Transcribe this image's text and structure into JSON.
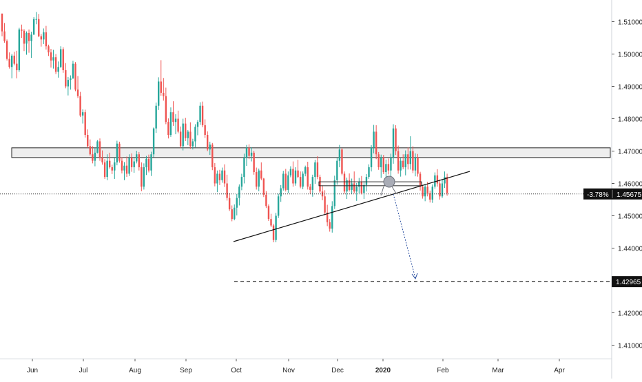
{
  "chart_data": {
    "type": "candlestick",
    "instrument_timeframe": "daily",
    "y_axis": {
      "ticks": [
        "1.51000",
        "1.50000",
        "1.49000",
        "1.48000",
        "1.47000",
        "1.46000",
        "1.45000",
        "1.44000",
        "1.43000",
        "1.42000",
        "1.41000"
      ],
      "tick_values": [
        1.51,
        1.5,
        1.49,
        1.48,
        1.47,
        1.46,
        1.45,
        1.44,
        1.43,
        1.42,
        1.41
      ],
      "range": [
        1.404,
        1.517
      ]
    },
    "x_axis": {
      "labels": [
        "Jun",
        "Jul",
        "Aug",
        "Sep",
        "Oct",
        "Nov",
        "Dec",
        "2020",
        "Feb",
        "Mar",
        "Apr"
      ],
      "bold_label": "2020"
    },
    "price_badge": {
      "change": "-3.78%",
      "price": "1.45675",
      "value": 1.45675
    },
    "target_badge": {
      "price": "1.42965",
      "value": 1.42965
    },
    "colors": {
      "up": "#26a69a",
      "down": "#ef5350",
      "arrow": "#2a4fa0",
      "zone_fill": "#eeeeee"
    },
    "resistance_zone": {
      "low": 1.468,
      "high": 1.471
    },
    "small_zone": {
      "low": 1.4595,
      "high": 1.4605
    },
    "candles": [
      [
        1.5125,
        1.5125,
        1.5055,
        1.507
      ],
      [
        1.507,
        1.5096,
        1.5035,
        1.504
      ],
      [
        1.504,
        1.5045,
        1.498,
        1.4985
      ],
      [
        1.4985,
        1.5005,
        1.4955,
        1.496
      ],
      [
        1.496,
        1.5,
        1.4925,
        1.4995
      ],
      [
        1.4995,
        1.5007,
        1.4965,
        1.497
      ],
      [
        1.497,
        1.501,
        1.4925,
        1.495
      ],
      [
        1.495,
        1.5081,
        1.4945,
        1.5076
      ],
      [
        1.5076,
        1.5091,
        1.505,
        1.5072
      ],
      [
        1.5072,
        1.5077,
        1.5009,
        1.5032
      ],
      [
        1.5032,
        1.507,
        1.4998,
        1.5065
      ],
      [
        1.5065,
        1.5076,
        1.5004,
        1.504
      ],
      [
        1.504,
        1.5069,
        1.4988,
        1.506
      ],
      [
        1.506,
        1.5114,
        1.5059,
        1.5108
      ],
      [
        1.5108,
        1.513,
        1.5092,
        1.5108
      ],
      [
        1.5108,
        1.5124,
        1.5052,
        1.5055
      ],
      [
        1.5055,
        1.5062,
        1.5023,
        1.5045
      ],
      [
        1.5045,
        1.5079,
        1.5031,
        1.5067
      ],
      [
        1.5067,
        1.5087,
        1.5014,
        1.5024
      ],
      [
        1.5024,
        1.5029,
        1.4994,
        1.5005
      ],
      [
        1.5005,
        1.5016,
        1.4958,
        1.498
      ],
      [
        1.498,
        1.5013,
        1.4955,
        1.499
      ],
      [
        1.499,
        1.5,
        1.4938,
        1.4945
      ],
      [
        1.4945,
        1.4977,
        1.4927,
        1.496
      ],
      [
        1.496,
        1.5024,
        1.4957,
        1.5015
      ],
      [
        1.5015,
        1.5021,
        1.4942,
        1.495
      ],
      [
        1.495,
        1.4972,
        1.4894,
        1.49
      ],
      [
        1.49,
        1.4929,
        1.4872,
        1.492
      ],
      [
        1.492,
        1.4934,
        1.489,
        1.4925
      ],
      [
        1.4925,
        1.4979,
        1.4923,
        1.497
      ],
      [
        1.497,
        1.4975,
        1.4885,
        1.489
      ],
      [
        1.489,
        1.4932,
        1.4864,
        1.487
      ],
      [
        1.487,
        1.4883,
        1.4805,
        1.481
      ],
      [
        1.481,
        1.4829,
        1.4785,
        1.482
      ],
      [
        1.482,
        1.4828,
        1.4742,
        1.475
      ],
      [
        1.475,
        1.4767,
        1.471,
        1.4715
      ],
      [
        1.4715,
        1.4736,
        1.4686,
        1.469
      ],
      [
        1.469,
        1.4715,
        1.4662,
        1.467
      ],
      [
        1.467,
        1.471,
        1.4653,
        1.4695
      ],
      [
        1.4695,
        1.4734,
        1.4693,
        1.473
      ],
      [
        1.473,
        1.4739,
        1.467,
        1.468
      ],
      [
        1.468,
        1.4702,
        1.4658,
        1.4665
      ],
      [
        1.4665,
        1.4675,
        1.4614,
        1.462
      ],
      [
        1.462,
        1.469,
        1.461,
        1.467
      ],
      [
        1.467,
        1.4695,
        1.4646,
        1.465
      ],
      [
        1.465,
        1.4658,
        1.4629,
        1.464
      ],
      [
        1.464,
        1.468,
        1.4614,
        1.4665
      ],
      [
        1.4665,
        1.4732,
        1.4656,
        1.4723
      ],
      [
        1.4723,
        1.4729,
        1.4664,
        1.467
      ],
      [
        1.467,
        1.4681,
        1.4631,
        1.464
      ],
      [
        1.464,
        1.4666,
        1.461,
        1.4655
      ],
      [
        1.4655,
        1.4683,
        1.462,
        1.463
      ],
      [
        1.463,
        1.469,
        1.4623,
        1.4679
      ],
      [
        1.4679,
        1.4693,
        1.4636,
        1.465
      ],
      [
        1.465,
        1.4678,
        1.4633,
        1.4668
      ],
      [
        1.4668,
        1.4701,
        1.4662,
        1.469
      ],
      [
        1.469,
        1.4697,
        1.464,
        1.465
      ],
      [
        1.465,
        1.4665,
        1.4576,
        1.459
      ],
      [
        1.459,
        1.4662,
        1.4581,
        1.465
      ],
      [
        1.465,
        1.4685,
        1.4626,
        1.4676
      ],
      [
        1.4676,
        1.4689,
        1.4634,
        1.464
      ],
      [
        1.464,
        1.4698,
        1.4623,
        1.469
      ],
      [
        1.469,
        1.4773,
        1.4681,
        1.477
      ],
      [
        1.477,
        1.485,
        1.4756,
        1.484
      ],
      [
        1.484,
        1.4928,
        1.4827,
        1.4915
      ],
      [
        1.4915,
        1.4981,
        1.4871,
        1.488
      ],
      [
        1.488,
        1.4926,
        1.4856,
        1.487
      ],
      [
        1.487,
        1.4896,
        1.4783,
        1.479
      ],
      [
        1.479,
        1.4801,
        1.4739,
        1.475
      ],
      [
        1.475,
        1.4835,
        1.4744,
        1.482
      ],
      [
        1.482,
        1.4854,
        1.4778,
        1.479
      ],
      [
        1.479,
        1.4814,
        1.4752,
        1.48
      ],
      [
        1.48,
        1.4825,
        1.4755,
        1.476
      ],
      [
        1.476,
        1.4776,
        1.4709,
        1.4715
      ],
      [
        1.4715,
        1.48,
        1.4702,
        1.4785
      ],
      [
        1.4785,
        1.4803,
        1.4731,
        1.474
      ],
      [
        1.474,
        1.4765,
        1.4718,
        1.476
      ],
      [
        1.476,
        1.4789,
        1.4707,
        1.4715
      ],
      [
        1.4715,
        1.4738,
        1.4705,
        1.473
      ],
      [
        1.473,
        1.4783,
        1.4712,
        1.4775
      ],
      [
        1.4775,
        1.4796,
        1.4749,
        1.479
      ],
      [
        1.479,
        1.4851,
        1.4781,
        1.484
      ],
      [
        1.484,
        1.4853,
        1.4774,
        1.478
      ],
      [
        1.478,
        1.4798,
        1.4741,
        1.475
      ],
      [
        1.475,
        1.4761,
        1.47,
        1.4705
      ],
      [
        1.4705,
        1.4729,
        1.4688,
        1.472
      ],
      [
        1.472,
        1.4725,
        1.4641,
        1.465
      ],
      [
        1.465,
        1.4663,
        1.4591,
        1.46
      ],
      [
        1.46,
        1.464,
        1.4573,
        1.463
      ],
      [
        1.463,
        1.4642,
        1.4595,
        1.461
      ],
      [
        1.461,
        1.4649,
        1.4602,
        1.464
      ],
      [
        1.464,
        1.4659,
        1.4589,
        1.46
      ],
      [
        1.46,
        1.4627,
        1.4547,
        1.4555
      ],
      [
        1.4555,
        1.457,
        1.4515,
        1.452
      ],
      [
        1.452,
        1.4532,
        1.4483,
        1.449
      ],
      [
        1.449,
        1.4535,
        1.4486,
        1.4525
      ],
      [
        1.4525,
        1.4567,
        1.4501,
        1.4555
      ],
      [
        1.4555,
        1.4597,
        1.4532,
        1.459
      ],
      [
        1.459,
        1.463,
        1.4579,
        1.462
      ],
      [
        1.462,
        1.4692,
        1.46,
        1.468
      ],
      [
        1.468,
        1.4719,
        1.4654,
        1.471
      ],
      [
        1.471,
        1.4721,
        1.4675,
        1.4685
      ],
      [
        1.4685,
        1.4712,
        1.4668,
        1.4695
      ],
      [
        1.4695,
        1.4701,
        1.4627,
        1.4635
      ],
      [
        1.4635,
        1.4649,
        1.4581,
        1.459
      ],
      [
        1.459,
        1.4646,
        1.4576,
        1.464
      ],
      [
        1.464,
        1.4665,
        1.461,
        1.4615
      ],
      [
        1.4615,
        1.4617,
        1.4558,
        1.4565
      ],
      [
        1.4565,
        1.4576,
        1.4524,
        1.453
      ],
      [
        1.453,
        1.4535,
        1.4484,
        1.449
      ],
      [
        1.449,
        1.4506,
        1.4465,
        1.447
      ],
      [
        1.447,
        1.4475,
        1.4418,
        1.4425
      ],
      [
        1.4425,
        1.4509,
        1.4418,
        1.45
      ],
      [
        1.45,
        1.4568,
        1.4493,
        1.456
      ],
      [
        1.456,
        1.4595,
        1.4543,
        1.4585
      ],
      [
        1.4585,
        1.4639,
        1.4578,
        1.463
      ],
      [
        1.463,
        1.4645,
        1.4575,
        1.458
      ],
      [
        1.458,
        1.4637,
        1.457,
        1.4625
      ],
      [
        1.4625,
        1.4653,
        1.4619,
        1.4645
      ],
      [
        1.4645,
        1.4668,
        1.459,
        1.46
      ],
      [
        1.46,
        1.465,
        1.4593,
        1.464
      ],
      [
        1.464,
        1.4673,
        1.4616,
        1.462
      ],
      [
        1.462,
        1.4637,
        1.4585,
        1.459
      ],
      [
        1.459,
        1.4637,
        1.4582,
        1.463
      ],
      [
        1.463,
        1.4655,
        1.4622,
        1.465
      ],
      [
        1.465,
        1.4667,
        1.4581,
        1.459
      ],
      [
        1.459,
        1.4599,
        1.4567,
        1.458
      ],
      [
        1.458,
        1.4627,
        1.4559,
        1.462
      ],
      [
        1.462,
        1.4673,
        1.4599,
        1.4665
      ],
      [
        1.4665,
        1.4684,
        1.4613,
        1.462
      ],
      [
        1.462,
        1.4627,
        1.457,
        1.4575
      ],
      [
        1.4575,
        1.4594,
        1.4548,
        1.456
      ],
      [
        1.456,
        1.4579,
        1.4502,
        1.451
      ],
      [
        1.451,
        1.4534,
        1.4468,
        1.448
      ],
      [
        1.448,
        1.449,
        1.4451,
        1.446
      ],
      [
        1.446,
        1.4545,
        1.4448,
        1.453
      ],
      [
        1.453,
        1.4624,
        1.4521,
        1.461
      ],
      [
        1.461,
        1.468,
        1.4596,
        1.467
      ],
      [
        1.467,
        1.4719,
        1.465,
        1.4705
      ],
      [
        1.4705,
        1.4709,
        1.4625,
        1.463
      ],
      [
        1.463,
        1.4637,
        1.4568,
        1.4575
      ],
      [
        1.4575,
        1.4618,
        1.4552,
        1.461
      ],
      [
        1.461,
        1.4631,
        1.4575,
        1.458
      ],
      [
        1.458,
        1.4615,
        1.4567,
        1.46
      ],
      [
        1.46,
        1.4637,
        1.4569,
        1.4575
      ],
      [
        1.4575,
        1.4601,
        1.4546,
        1.459
      ],
      [
        1.459,
        1.4617,
        1.4569,
        1.4605
      ],
      [
        1.4605,
        1.4623,
        1.4566,
        1.457
      ],
      [
        1.457,
        1.4607,
        1.4552,
        1.4595
      ],
      [
        1.4595,
        1.4629,
        1.4575,
        1.462
      ],
      [
        1.462,
        1.4659,
        1.4614,
        1.465
      ],
      [
        1.465,
        1.4718,
        1.4637,
        1.471
      ],
      [
        1.471,
        1.4781,
        1.4693,
        1.476
      ],
      [
        1.476,
        1.478,
        1.4675,
        1.469
      ],
      [
        1.469,
        1.4697,
        1.4642,
        1.465
      ],
      [
        1.465,
        1.4689,
        1.4617,
        1.468
      ],
      [
        1.468,
        1.4688,
        1.4629,
        1.4635
      ],
      [
        1.4635,
        1.4674,
        1.4595,
        1.466
      ],
      [
        1.466,
        1.4677,
        1.4628,
        1.464
      ],
      [
        1.464,
        1.4692,
        1.4604,
        1.468
      ],
      [
        1.468,
        1.4783,
        1.4661,
        1.477
      ],
      [
        1.477,
        1.478,
        1.4688,
        1.47
      ],
      [
        1.47,
        1.4717,
        1.463,
        1.464
      ],
      [
        1.464,
        1.4678,
        1.4621,
        1.467
      ],
      [
        1.467,
        1.469,
        1.4644,
        1.465
      ],
      [
        1.465,
        1.4702,
        1.4625,
        1.469
      ],
      [
        1.469,
        1.4711,
        1.4643,
        1.466
      ],
      [
        1.466,
        1.4746,
        1.4643,
        1.47
      ],
      [
        1.47,
        1.4715,
        1.4632,
        1.464
      ],
      [
        1.464,
        1.4693,
        1.4622,
        1.468
      ],
      [
        1.468,
        1.4691,
        1.4621,
        1.463
      ],
      [
        1.463,
        1.4636,
        1.4578,
        1.459
      ],
      [
        1.459,
        1.4596,
        1.4553,
        1.456
      ],
      [
        1.456,
        1.4598,
        1.4545,
        1.459
      ],
      [
        1.459,
        1.4605,
        1.456,
        1.457
      ],
      [
        1.457,
        1.4578,
        1.4541,
        1.455
      ],
      [
        1.455,
        1.4597,
        1.454,
        1.459
      ],
      [
        1.459,
        1.4634,
        1.4584,
        1.4625
      ],
      [
        1.4625,
        1.4644,
        1.459,
        1.46
      ],
      [
        1.46,
        1.4612,
        1.455,
        1.456
      ],
      [
        1.456,
        1.4611,
        1.4555,
        1.46
      ],
      [
        1.46,
        1.4637,
        1.4586,
        1.462
      ],
      [
        1.462,
        1.463,
        1.4562,
        1.457
      ]
    ]
  }
}
